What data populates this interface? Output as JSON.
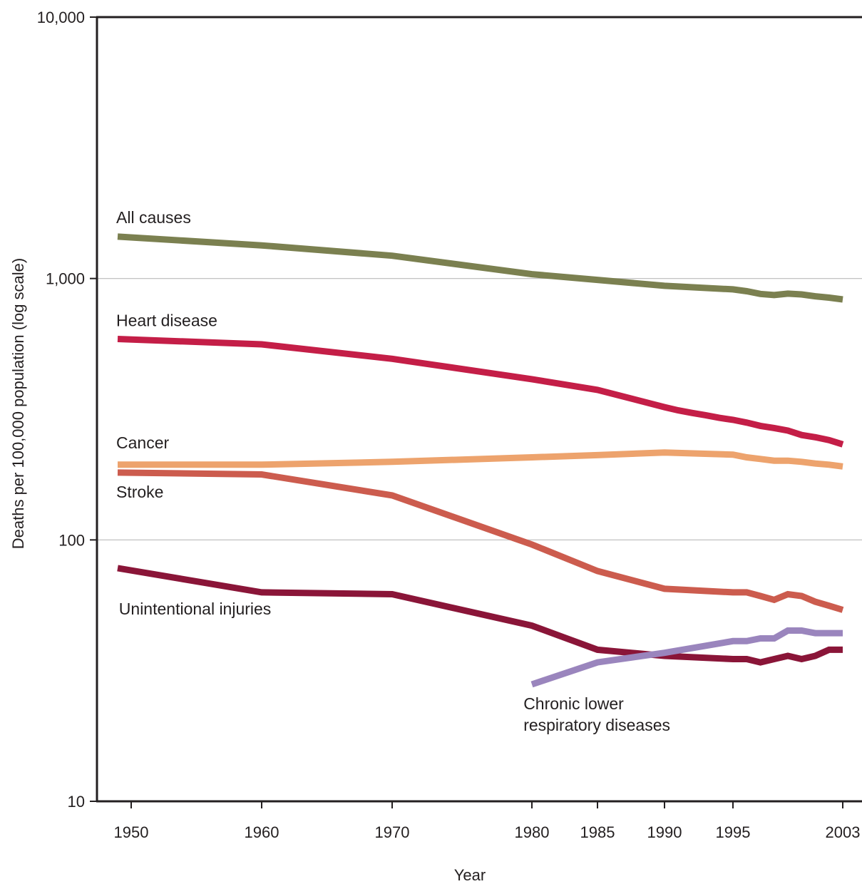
{
  "chart_data": {
    "type": "line",
    "title": "",
    "xlabel": "Year",
    "ylabel": "Deaths per 100,000 population (log scale)",
    "yscale": "log",
    "ylim": [
      10,
      10000
    ],
    "xlim": [
      1949,
      2003
    ],
    "grid": "horizontal at 100 and 1,000",
    "x_ticks": [
      1950,
      1960,
      1970,
      1980,
      1985,
      1990,
      1995,
      2003
    ],
    "x_tick_labels": [
      "1950",
      "1960",
      "1970",
      "1980",
      "1985",
      "1990",
      "1995",
      "2003"
    ],
    "y_ticks": [
      10,
      100,
      1000,
      10000
    ],
    "y_tick_labels": [
      "10",
      "100",
      "1,000",
      "10,000"
    ],
    "series": [
      {
        "name": "All causes",
        "color": "#7b8050",
        "points": [
          [
            1950,
            1446
          ],
          [
            1960,
            1339
          ],
          [
            1970,
            1222
          ],
          [
            1980,
            1039
          ],
          [
            1985,
            988
          ],
          [
            1990,
            938
          ],
          [
            1995,
            909
          ],
          [
            1996,
            894
          ],
          [
            1997,
            873
          ],
          [
            1998,
            865
          ],
          [
            1999,
            875
          ],
          [
            2000,
            869
          ],
          [
            2001,
            855
          ],
          [
            2002,
            845
          ],
          [
            2003,
            832
          ]
        ]
      },
      {
        "name": "Heart disease",
        "color": "#c41e47",
        "points": [
          [
            1950,
            587
          ],
          [
            1960,
            560
          ],
          [
            1970,
            493
          ],
          [
            1980,
            412
          ],
          [
            1985,
            375
          ],
          [
            1990,
            322
          ],
          [
            1991,
            313
          ],
          [
            1992,
            306
          ],
          [
            1993,
            300
          ],
          [
            1994,
            293
          ],
          [
            1995,
            288
          ],
          [
            1996,
            281
          ],
          [
            1997,
            273
          ],
          [
            1998,
            268
          ],
          [
            1999,
            262
          ],
          [
            2000,
            252
          ],
          [
            2001,
            247
          ],
          [
            2002,
            241
          ],
          [
            2003,
            232
          ]
        ]
      },
      {
        "name": "Cancer",
        "color": "#eda36d",
        "points": [
          [
            1950,
            194
          ],
          [
            1960,
            194
          ],
          [
            1970,
            199
          ],
          [
            1980,
            207
          ],
          [
            1985,
            211
          ],
          [
            1990,
            216
          ],
          [
            1995,
            212
          ],
          [
            1996,
            207
          ],
          [
            1997,
            204
          ],
          [
            1998,
            201
          ],
          [
            1999,
            201
          ],
          [
            2000,
            199
          ],
          [
            2001,
            196
          ],
          [
            2002,
            194
          ],
          [
            2003,
            191
          ]
        ]
      },
      {
        "name": "Stroke",
        "color": "#cc5c4e",
        "points": [
          [
            1950,
            181
          ],
          [
            1960,
            178
          ],
          [
            1970,
            148
          ],
          [
            1980,
            96
          ],
          [
            1985,
            76
          ],
          [
            1990,
            65
          ],
          [
            1995,
            63
          ],
          [
            1996,
            63
          ],
          [
            1997,
            61
          ],
          [
            1998,
            59
          ],
          [
            1999,
            62
          ],
          [
            2000,
            61
          ],
          [
            2001,
            58
          ],
          [
            2002,
            56
          ],
          [
            2003,
            54
          ]
        ]
      },
      {
        "name": "Unintentional injuries",
        "color": "#8a1538",
        "points": [
          [
            1950,
            78
          ],
          [
            1960,
            63
          ],
          [
            1970,
            62
          ],
          [
            1980,
            47
          ],
          [
            1985,
            38
          ],
          [
            1990,
            36
          ],
          [
            1995,
            35
          ],
          [
            1996,
            35
          ],
          [
            1997,
            34
          ],
          [
            1998,
            35
          ],
          [
            1999,
            36
          ],
          [
            2000,
            35
          ],
          [
            2001,
            36
          ],
          [
            2002,
            38
          ],
          [
            2003,
            38
          ]
        ]
      },
      {
        "name": "Chronic lower respiratory diseases",
        "name_lines": [
          "Chronic lower",
          "respiratory diseases"
        ],
        "color": "#9a85bd",
        "points": [
          [
            1980,
            28
          ],
          [
            1985,
            34
          ],
          [
            1990,
            37
          ],
          [
            1995,
            41
          ],
          [
            1996,
            41
          ],
          [
            1997,
            42
          ],
          [
            1998,
            42
          ],
          [
            1999,
            45
          ],
          [
            2000,
            45
          ],
          [
            2001,
            44
          ],
          [
            2002,
            44
          ],
          [
            2003,
            44
          ]
        ]
      }
    ]
  }
}
